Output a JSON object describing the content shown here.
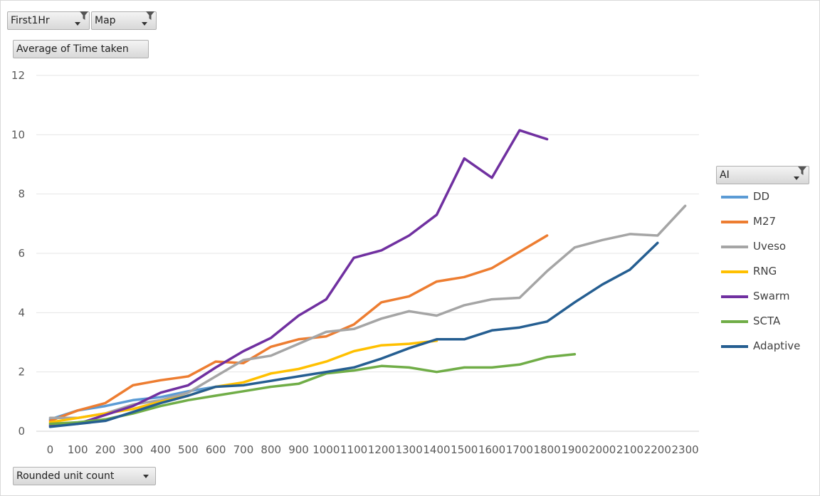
{
  "filters": {
    "first1hr": "First1Hr",
    "map": "Map",
    "value_field": "Average of Time taken",
    "legend_field": "AI",
    "axis_field": "Rounded unit count"
  },
  "icons": {
    "dropdown": "chevron-down-icon",
    "filter": "funnel-icon"
  },
  "chart_data": {
    "type": "line",
    "title": "",
    "xlabel": "Rounded unit count",
    "ylabel": "Average of Time taken",
    "categories": [
      "0",
      "100",
      "200",
      "300",
      "400",
      "500",
      "600",
      "700",
      "800",
      "900",
      "1000",
      "1100",
      "1200",
      "1300",
      "1400",
      "1500",
      "1600",
      "1700",
      "1800",
      "1900",
      "2000",
      "2100",
      "2200",
      "2300"
    ],
    "ylim": [
      0,
      12
    ],
    "yticks": [
      "0",
      "2",
      "4",
      "6",
      "8",
      "10",
      "12"
    ],
    "grid": true,
    "legend_position": "right",
    "series": [
      {
        "name": "DD",
        "color": "#5b9bd5",
        "values": [
          0.4,
          0.7,
          0.85,
          1.05,
          1.15,
          1.35,
          1.5,
          null,
          null,
          null,
          null,
          null,
          null,
          null,
          null,
          null,
          null,
          null,
          null,
          null,
          null,
          null,
          null,
          null
        ]
      },
      {
        "name": "M27",
        "color": "#ed7d31",
        "values": [
          0.35,
          0.7,
          0.95,
          1.55,
          1.72,
          1.85,
          2.35,
          2.3,
          2.85,
          3.1,
          3.2,
          3.6,
          4.35,
          4.55,
          5.05,
          5.2,
          5.5,
          6.05,
          6.6,
          null,
          null,
          null,
          null,
          null
        ]
      },
      {
        "name": "Uveso",
        "color": "#a5a5a5",
        "values": [
          0.45,
          0.45,
          0.6,
          0.9,
          1.05,
          1.3,
          1.85,
          2.4,
          2.55,
          2.95,
          3.35,
          3.45,
          3.8,
          4.05,
          3.9,
          4.25,
          4.45,
          4.5,
          5.4,
          6.2,
          6.45,
          6.65,
          6.6,
          7.6
        ]
      },
      {
        "name": "RNG",
        "color": "#ffc000",
        "values": [
          0.3,
          0.45,
          0.6,
          0.75,
          1.0,
          1.2,
          1.5,
          1.65,
          1.95,
          2.1,
          2.35,
          2.7,
          2.9,
          2.95,
          3.05,
          null,
          null,
          null,
          null,
          null,
          null,
          null,
          null,
          null
        ]
      },
      {
        "name": "Swarm",
        "color": "#7030a0",
        "values": [
          0.2,
          0.25,
          0.55,
          0.85,
          1.3,
          1.55,
          2.15,
          2.7,
          3.15,
          3.9,
          4.45,
          5.85,
          6.1,
          6.6,
          7.3,
          9.2,
          8.55,
          10.15,
          9.85,
          null,
          null,
          null,
          null,
          null
        ]
      },
      {
        "name": "SCTA",
        "color": "#70ad47",
        "values": [
          0.25,
          0.3,
          0.4,
          0.6,
          0.85,
          1.05,
          1.2,
          1.35,
          1.5,
          1.6,
          1.95,
          2.05,
          2.2,
          2.15,
          2.0,
          2.15,
          2.15,
          2.25,
          2.5,
          2.6,
          null,
          null,
          null,
          null
        ]
      },
      {
        "name": "Adaptive",
        "color": "#255e91",
        "values": [
          0.15,
          0.25,
          0.35,
          0.65,
          0.95,
          1.2,
          1.5,
          1.55,
          1.7,
          1.85,
          2.0,
          2.15,
          2.45,
          2.8,
          3.1,
          3.1,
          3.4,
          3.5,
          3.7,
          4.35,
          4.95,
          5.45,
          6.35,
          null
        ]
      }
    ]
  }
}
